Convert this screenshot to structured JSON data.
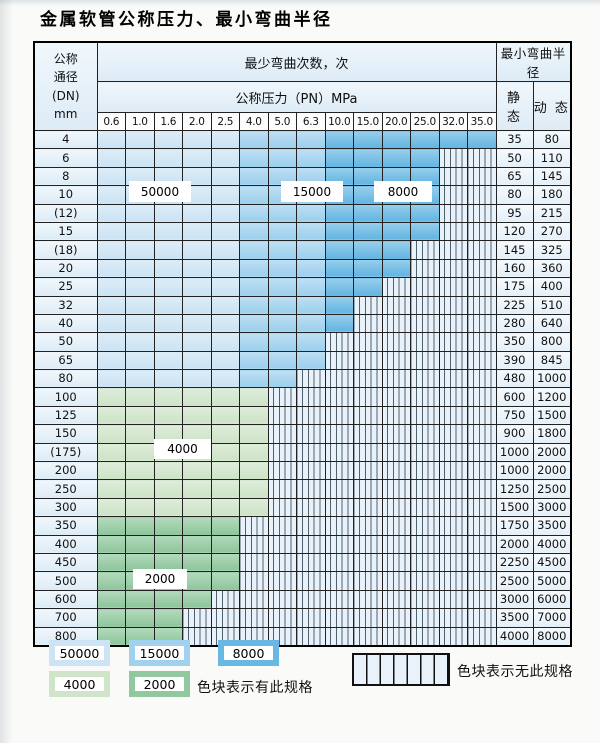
{
  "title": "金属软管公称压力、最小弯曲半径",
  "table": {
    "dn_header_lines": [
      "公称",
      "通径",
      "(DN)",
      "mm"
    ],
    "bend_cycles_header": "最少弯曲次数，次",
    "pressure_header": "公称压力（PN）MPa",
    "pressure_columns": [
      "0.6",
      "1.0",
      "1.6",
      "2.0",
      "2.5",
      "4.0",
      "5.0",
      "6.3",
      "10.0",
      "15.0",
      "20.0",
      "25.0",
      "32.0",
      "35.0"
    ],
    "radius_header": "最小弯曲半径",
    "static_header": "静 态",
    "dynamic_header": "动 态",
    "blue_column_bands": [
      {
        "cycles": "50000",
        "from_col": "0.6",
        "to_col": "2.5"
      },
      {
        "cycles": "15000",
        "from_col": "4.0",
        "to_col": "6.3"
      },
      {
        "cycles": "8000",
        "from_col": "10.0",
        "to_col": "35.0"
      }
    ],
    "overlay_labels": [
      {
        "text": "50000"
      },
      {
        "text": "15000"
      },
      {
        "text": "8000"
      },
      {
        "text": "4000"
      },
      {
        "text": "2000"
      }
    ],
    "rows": [
      {
        "dn": "4",
        "max_pn": "35.0",
        "static": "35",
        "dynamic": "80"
      },
      {
        "dn": "6",
        "max_pn": "25.0",
        "static": "50",
        "dynamic": "110"
      },
      {
        "dn": "8",
        "max_pn": "25.0",
        "static": "65",
        "dynamic": "145"
      },
      {
        "dn": "10",
        "max_pn": "25.0",
        "static": "80",
        "dynamic": "180"
      },
      {
        "dn": "(12)",
        "max_pn": "25.0",
        "static": "95",
        "dynamic": "215"
      },
      {
        "dn": "15",
        "max_pn": "25.0",
        "static": "120",
        "dynamic": "270"
      },
      {
        "dn": "(18)",
        "max_pn": "20.0",
        "static": "145",
        "dynamic": "325"
      },
      {
        "dn": "20",
        "max_pn": "20.0",
        "static": "160",
        "dynamic": "360"
      },
      {
        "dn": "25",
        "max_pn": "15.0",
        "static": "175",
        "dynamic": "400"
      },
      {
        "dn": "32",
        "max_pn": "10.0",
        "static": "225",
        "dynamic": "510"
      },
      {
        "dn": "40",
        "max_pn": "10.0",
        "static": "280",
        "dynamic": "640"
      },
      {
        "dn": "50",
        "max_pn": "6.3",
        "static": "350",
        "dynamic": "800"
      },
      {
        "dn": "65",
        "max_pn": "6.3",
        "static": "390",
        "dynamic": "845"
      },
      {
        "dn": "80",
        "max_pn": "5.0",
        "static": "480",
        "dynamic": "1000"
      },
      {
        "dn": "100",
        "max_pn": "4.0",
        "cycles": "4000",
        "static": "600",
        "dynamic": "1200"
      },
      {
        "dn": "125",
        "max_pn": "4.0",
        "cycles": "4000",
        "static": "750",
        "dynamic": "1500"
      },
      {
        "dn": "150",
        "max_pn": "4.0",
        "cycles": "4000",
        "static": "900",
        "dynamic": "1800"
      },
      {
        "dn": "(175)",
        "max_pn": "4.0",
        "cycles": "4000",
        "static": "1000",
        "dynamic": "2000"
      },
      {
        "dn": "200",
        "max_pn": "4.0",
        "cycles": "4000",
        "static": "1000",
        "dynamic": "2000"
      },
      {
        "dn": "250",
        "max_pn": "4.0",
        "cycles": "4000",
        "static": "1250",
        "dynamic": "2500"
      },
      {
        "dn": "300",
        "max_pn": "4.0",
        "cycles": "4000",
        "static": "1500",
        "dynamic": "3000"
      },
      {
        "dn": "350",
        "max_pn": "2.5",
        "cycles": "2000",
        "static": "1750",
        "dynamic": "3500"
      },
      {
        "dn": "400",
        "max_pn": "2.5",
        "cycles": "2000",
        "static": "2000",
        "dynamic": "4000"
      },
      {
        "dn": "450",
        "max_pn": "2.5",
        "cycles": "2000",
        "static": "2250",
        "dynamic": "4500"
      },
      {
        "dn": "500",
        "max_pn": "2.5",
        "cycles": "2000",
        "static": "2500",
        "dynamic": "5000"
      },
      {
        "dn": "600",
        "max_pn": "2.0",
        "cycles": "2000",
        "static": "3000",
        "dynamic": "6000"
      },
      {
        "dn": "700",
        "max_pn": "1.6",
        "cycles": "2000",
        "static": "3500",
        "dynamic": "7000"
      },
      {
        "dn": "800",
        "max_pn": "1.6",
        "cycles": "2000",
        "static": "4000",
        "dynamic": "8000"
      }
    ]
  },
  "legend": {
    "items": [
      {
        "label": "50000",
        "color": "#cde4f4"
      },
      {
        "label": "15000",
        "color": "#a0d1ee"
      },
      {
        "label": "8000",
        "color": "#68b8e3"
      },
      {
        "label": "4000",
        "color": "#cfe4c9"
      },
      {
        "label": "2000",
        "color": "#92c89f"
      }
    ],
    "has_spec_note": "色块表示有此规格",
    "no_spec_note": "色块表示无此规格"
  },
  "colors": {
    "cycles_50000": "#cde4f4",
    "cycles_15000": "#a0d1ee",
    "cycles_8000": "#68b8e3",
    "cycles_4000": "#cfe4c9",
    "cycles_2000": "#92c89f",
    "header_fill": "#ddebf6",
    "no_spec_fill": "#e9f2fa",
    "grid_line": "#222222"
  },
  "chart_data": {
    "type": "table",
    "title": "金属软管公称压力、最小弯曲半径",
    "pressure_columns_mpa": [
      0.6,
      1.0,
      1.6,
      2.0,
      2.5,
      4.0,
      5.0,
      6.3,
      10.0,
      15.0,
      20.0,
      25.0,
      32.0,
      35.0
    ],
    "bend_cycles_by_pressure_band": {
      "0.6-2.5": 50000,
      "4.0-6.3": 15000,
      "10.0-35.0": 8000
    },
    "bend_cycles_by_dn_band": {
      "DN100-300": 4000,
      "DN350-800": 2000
    },
    "rows": [
      {
        "dn": "4",
        "available_up_to_mpa": 35.0,
        "static_radius": 35,
        "dynamic_radius": 80
      },
      {
        "dn": "6",
        "available_up_to_mpa": 25.0,
        "static_radius": 50,
        "dynamic_radius": 110
      },
      {
        "dn": "8",
        "available_up_to_mpa": 25.0,
        "static_radius": 65,
        "dynamic_radius": 145
      },
      {
        "dn": "10",
        "available_up_to_mpa": 25.0,
        "static_radius": 80,
        "dynamic_radius": 180
      },
      {
        "dn": "(12)",
        "available_up_to_mpa": 25.0,
        "static_radius": 95,
        "dynamic_radius": 215
      },
      {
        "dn": "15",
        "available_up_to_mpa": 25.0,
        "static_radius": 120,
        "dynamic_radius": 270
      },
      {
        "dn": "(18)",
        "available_up_to_mpa": 20.0,
        "static_radius": 145,
        "dynamic_radius": 325
      },
      {
        "dn": "20",
        "available_up_to_mpa": 20.0,
        "static_radius": 160,
        "dynamic_radius": 360
      },
      {
        "dn": "25",
        "available_up_to_mpa": 15.0,
        "static_radius": 175,
        "dynamic_radius": 400
      },
      {
        "dn": "32",
        "available_up_to_mpa": 10.0,
        "static_radius": 225,
        "dynamic_radius": 510
      },
      {
        "dn": "40",
        "available_up_to_mpa": 10.0,
        "static_radius": 280,
        "dynamic_radius": 640
      },
      {
        "dn": "50",
        "available_up_to_mpa": 6.3,
        "static_radius": 350,
        "dynamic_radius": 800
      },
      {
        "dn": "65",
        "available_up_to_mpa": 6.3,
        "static_radius": 390,
        "dynamic_radius": 845
      },
      {
        "dn": "80",
        "available_up_to_mpa": 5.0,
        "static_radius": 480,
        "dynamic_radius": 1000
      },
      {
        "dn": "100",
        "available_up_to_mpa": 4.0,
        "static_radius": 600,
        "dynamic_radius": 1200
      },
      {
        "dn": "125",
        "available_up_to_mpa": 4.0,
        "static_radius": 750,
        "dynamic_radius": 1500
      },
      {
        "dn": "150",
        "available_up_to_mpa": 4.0,
        "static_radius": 900,
        "dynamic_radius": 1800
      },
      {
        "dn": "(175)",
        "available_up_to_mpa": 4.0,
        "static_radius": 1000,
        "dynamic_radius": 2000
      },
      {
        "dn": "200",
        "available_up_to_mpa": 4.0,
        "static_radius": 1000,
        "dynamic_radius": 2000
      },
      {
        "dn": "250",
        "available_up_to_mpa": 4.0,
        "static_radius": 1250,
        "dynamic_radius": 2500
      },
      {
        "dn": "300",
        "available_up_to_mpa": 4.0,
        "static_radius": 1500,
        "dynamic_radius": 3000
      },
      {
        "dn": "350",
        "available_up_to_mpa": 2.5,
        "static_radius": 1750,
        "dynamic_radius": 3500
      },
      {
        "dn": "400",
        "available_up_to_mpa": 2.5,
        "static_radius": 2000,
        "dynamic_radius": 4000
      },
      {
        "dn": "450",
        "available_up_to_mpa": 2.5,
        "static_radius": 2250,
        "dynamic_radius": 4500
      },
      {
        "dn": "500",
        "available_up_to_mpa": 2.5,
        "static_radius": 2500,
        "dynamic_radius": 5000
      },
      {
        "dn": "600",
        "available_up_to_mpa": 2.0,
        "static_radius": 3000,
        "dynamic_radius": 6000
      },
      {
        "dn": "700",
        "available_up_to_mpa": 1.6,
        "static_radius": 3500,
        "dynamic_radius": 7000
      },
      {
        "dn": "800",
        "available_up_to_mpa": 1.6,
        "static_radius": 4000,
        "dynamic_radius": 8000
      }
    ],
    "legend_entries": [
      "50000",
      "15000",
      "8000",
      "4000",
      "2000",
      "色块表示有此规格",
      "色块表示无此规格"
    ]
  }
}
